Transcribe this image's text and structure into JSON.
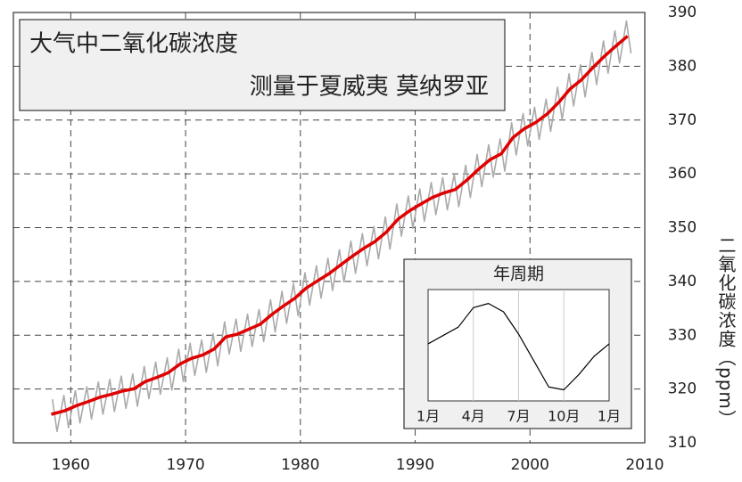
{
  "chart_data": [
    {
      "type": "line",
      "title": "大气中二氧化碳浓度",
      "subtitle": "测量于夏威夷 莫纳罗亚",
      "y_label": "二氧化碳浓度（ppm）",
      "xlim": [
        1955,
        2010
      ],
      "xticks": [
        1960,
        1970,
        1980,
        1990,
        2000,
        2010
      ],
      "ylim": [
        310,
        390
      ],
      "yticks": [
        310,
        320,
        330,
        340,
        350,
        360,
        370,
        380,
        390
      ],
      "grid": true,
      "series": [
        {
          "color": "#aaaaaa",
          "x": [
            1958.4,
            1958.8,
            1959.4,
            1959.8,
            1960.4,
            1960.8,
            1961.4,
            1961.8,
            1962.4,
            1962.8,
            1963.4,
            1963.8,
            1964.4,
            1964.8,
            1965.4,
            1965.8,
            1966.4,
            1966.8,
            1967.4,
            1967.8,
            1968.4,
            1968.8,
            1969.4,
            1969.8,
            1970.4,
            1970.8,
            1971.4,
            1971.8,
            1972.4,
            1972.8,
            1973.4,
            1973.8,
            1974.4,
            1974.8,
            1975.4,
            1975.8,
            1976.4,
            1976.8,
            1977.4,
            1977.8,
            1978.4,
            1978.8,
            1979.4,
            1979.8,
            1980.4,
            1980.8,
            1981.4,
            1981.8,
            1982.4,
            1982.8,
            1983.4,
            1983.8,
            1984.4,
            1984.8,
            1985.4,
            1985.8,
            1986.4,
            1986.8,
            1987.4,
            1987.8,
            1988.4,
            1988.8,
            1989.4,
            1989.8,
            1990.4,
            1990.8,
            1991.4,
            1991.8,
            1992.4,
            1992.8,
            1993.4,
            1993.8,
            1994.4,
            1994.8,
            1995.4,
            1995.8,
            1996.4,
            1996.8,
            1997.4,
            1997.8,
            1998.4,
            1998.8,
            1999.4,
            1999.8,
            2000.4,
            2000.8,
            2001.4,
            2001.8,
            2002.4,
            2002.8,
            2003.4,
            2003.8,
            2004.4,
            2004.8,
            2005.4,
            2005.8,
            2006.4,
            2006.8,
            2007.4,
            2007.8,
            2008.4,
            2008.8
          ],
          "values": [
            318.1,
            312.1,
            318.8,
            312.8,
            319.7,
            313.7,
            320.4,
            314.4,
            321.3,
            315.3,
            321.8,
            315.8,
            322.4,
            316.4,
            322.8,
            316.8,
            324.2,
            318.2,
            325.0,
            319.0,
            325.8,
            319.8,
            327.4,
            321.4,
            328.5,
            322.5,
            329.1,
            323.1,
            330.3,
            324.3,
            332.5,
            326.5,
            333.0,
            327.0,
            333.9,
            327.9,
            334.8,
            328.8,
            336.6,
            330.6,
            338.2,
            332.2,
            339.6,
            333.6,
            341.6,
            335.6,
            342.9,
            336.9,
            344.3,
            338.3,
            345.9,
            339.9,
            347.5,
            341.5,
            348.9,
            342.9,
            350.2,
            344.2,
            352.0,
            346.0,
            354.4,
            348.4,
            355.9,
            349.9,
            357.2,
            351.2,
            358.4,
            352.4,
            359.3,
            353.3,
            359.9,
            353.9,
            361.6,
            355.6,
            363.6,
            357.6,
            365.4,
            359.4,
            366.5,
            360.5,
            369.5,
            363.5,
            371.2,
            365.2,
            372.4,
            366.4,
            373.9,
            367.9,
            376.1,
            370.1,
            378.6,
            372.6,
            380.3,
            374.3,
            382.6,
            376.6,
            384.7,
            378.7,
            386.6,
            380.6,
            388.4,
            382.4
          ]
        },
        {
          "color": "#e00000",
          "x": [
            1958.3,
            1959.5,
            1960.5,
            1961.5,
            1962.5,
            1963.5,
            1964.5,
            1965.5,
            1966.5,
            1967.5,
            1968.5,
            1969.5,
            1970.5,
            1971.5,
            1972.5,
            1973.5,
            1974.5,
            1975.5,
            1976.5,
            1977.5,
            1978.5,
            1979.5,
            1980.5,
            1981.5,
            1982.5,
            1983.5,
            1984.5,
            1985.5,
            1986.5,
            1987.5,
            1988.5,
            1989.5,
            1990.5,
            1991.5,
            1992.5,
            1993.5,
            1994.5,
            1995.5,
            1996.5,
            1997.5,
            1998.5,
            1999.5,
            2000.5,
            2001.5,
            2002.5,
            2003.5,
            2004.5,
            2005.5,
            2006.5,
            2007.5,
            2008.5
          ],
          "values": [
            315.3,
            315.98,
            316.91,
            317.64,
            318.45,
            318.99,
            319.62,
            320.04,
            321.38,
            322.16,
            323.04,
            324.62,
            325.68,
            326.32,
            327.45,
            329.68,
            330.18,
            331.11,
            332.04,
            333.83,
            335.4,
            336.84,
            338.75,
            340.11,
            341.45,
            343.05,
            344.65,
            346.12,
            347.42,
            349.19,
            351.57,
            353.12,
            354.39,
            355.61,
            356.45,
            357.1,
            358.83,
            360.82,
            362.61,
            363.73,
            366.7,
            368.38,
            369.55,
            371.14,
            373.28,
            375.8,
            377.52,
            379.8,
            381.9,
            383.79,
            385.6
          ]
        }
      ]
    },
    {
      "type": "line",
      "title": "年周期",
      "categories": [
        "1月",
        null,
        null,
        "4月",
        null,
        null,
        "7月",
        null,
        null,
        "10月",
        null,
        null,
        "1月"
      ],
      "values": [
        0.1,
        0.7,
        1.3,
        2.7,
        3.0,
        2.4,
        0.8,
        -1.1,
        -3.0,
        -3.2,
        -2.1,
        -0.8,
        0.1
      ],
      "ylim": [
        -4,
        4
      ],
      "color": "#000000"
    }
  ]
}
